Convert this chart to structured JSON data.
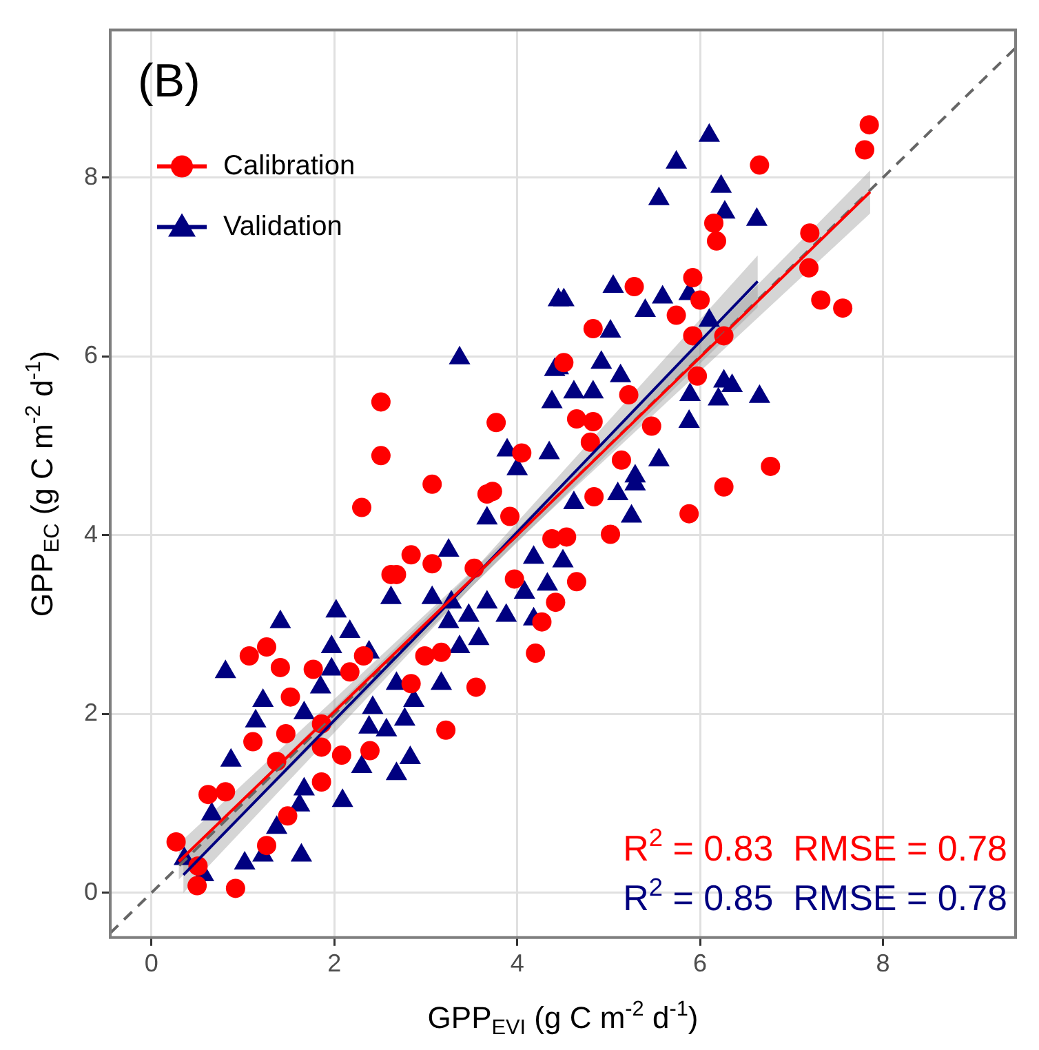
{
  "chart_data": {
    "type": "scatter",
    "xlabel": "GPP$_{EVI}$ (g C m$^{-2}$ d$^{-1}$)",
    "ylabel": "GPP$_{EC}$ (g C m$^{-2}$ d$^{-1}$)",
    "annotations": [
      "(B)",
      "R$^{2}$ = 0.83  RMSE = 0.78",
      "R$^{2}$ = 0.85  RMSE = 0.78"
    ],
    "xlim": [
      -0.45,
      9.45
    ],
    "ylim": [
      -0.5,
      9.65
    ],
    "xticks": [
      0,
      2,
      4,
      6,
      8
    ],
    "yticks": [
      0,
      2,
      4,
      6,
      8
    ],
    "grid": true,
    "legend": "top left",
    "series": [
      {
        "name": "Calibration",
        "marker": "circle",
        "color": "#ff0000",
        "x": [
          7.85,
          7.8,
          6.65,
          6.15,
          6.18,
          7.2,
          7.19,
          7.32,
          7.56,
          6.77,
          6.26,
          5.88,
          5.28,
          5.92,
          6.0,
          5.74,
          4.83,
          5.97,
          5.22,
          4.65,
          4.83,
          5.47,
          5.14,
          4.8,
          4.51,
          5.92,
          6.26,
          4.84,
          5.02,
          4.54,
          4.65,
          4.42,
          2.3,
          3.07,
          3.73,
          2.84,
          2.68,
          3.07,
          1.07,
          1.26,
          1.41,
          1.52,
          1.77,
          2.17,
          1.11,
          1.47,
          1.37,
          1.86,
          2.08,
          1.86,
          0.62,
          0.81,
          1.49,
          1.26,
          0.27,
          0.92,
          3.22,
          3.55,
          3.17,
          3.97,
          4.27,
          4.2,
          4.38,
          3.92,
          2.51,
          2.51,
          3.53,
          2.62,
          3.77,
          4.05,
          3.67,
          1.86,
          2.39,
          0.51,
          0.5,
          2.84,
          2.99,
          2.32
        ],
        "values": [
          8.59,
          8.31,
          8.14,
          7.49,
          7.29,
          7.38,
          6.99,
          6.63,
          6.54,
          4.77,
          4.54,
          4.24,
          6.78,
          6.88,
          6.63,
          6.46,
          6.31,
          5.78,
          5.57,
          5.3,
          5.27,
          5.22,
          4.84,
          5.04,
          5.93,
          6.23,
          6.23,
          4.43,
          4.01,
          3.98,
          3.48,
          3.25,
          4.31,
          4.57,
          4.49,
          3.78,
          3.56,
          3.68,
          2.65,
          2.75,
          2.52,
          2.19,
          2.5,
          2.47,
          1.69,
          1.78,
          1.47,
          1.63,
          1.54,
          1.24,
          1.1,
          1.13,
          0.86,
          0.53,
          0.57,
          0.05,
          1.82,
          2.3,
          2.69,
          3.51,
          3.03,
          2.68,
          3.96,
          4.21,
          5.49,
          4.89,
          3.63,
          3.56,
          5.26,
          4.92,
          4.46,
          1.89,
          1.59,
          0.3,
          0.08,
          2.34,
          2.65,
          2.65
        ]
      },
      {
        "name": "Validation",
        "marker": "triangle",
        "color": "#000080",
        "x": [
          6.1,
          5.74,
          5.55,
          6.23,
          6.27,
          6.62,
          5.05,
          4.51,
          5.59,
          5.4,
          5.88,
          6.1,
          5.02,
          4.92,
          5.13,
          4.62,
          4.83,
          4.45,
          6.26,
          6.35,
          6.65,
          6.2,
          5.89,
          5.88,
          5.55,
          5.29,
          3.37,
          4.45,
          4.41,
          4.38,
          3.89,
          4.35,
          4.0,
          5.1,
          5.29,
          5.25,
          4.62,
          4.5,
          3.67,
          3.25,
          2.62,
          2.02,
          1.41,
          0.81,
          1.22,
          1.14,
          1.67,
          1.85,
          1.97,
          2.17,
          2.38,
          2.42,
          2.68,
          2.87,
          2.57,
          2.83,
          2.68,
          2.3,
          2.09,
          1.67,
          1.62,
          0.87,
          0.66,
          1.37,
          1.22,
          1.64,
          1.02,
          0.36,
          0.57,
          3.07,
          3.28,
          3.47,
          3.67,
          3.88,
          3.58,
          3.37,
          3.17,
          2.77,
          2.38,
          4.08,
          4.33,
          4.18,
          4.18,
          3.25,
          1.97
        ],
        "values": [
          8.47,
          8.17,
          7.76,
          7.9,
          7.61,
          7.53,
          6.78,
          6.63,
          6.66,
          6.51,
          6.7,
          6.4,
          6.28,
          5.93,
          5.78,
          5.6,
          5.6,
          5.87,
          5.72,
          5.67,
          5.55,
          5.52,
          5.57,
          5.27,
          4.84,
          4.66,
          5.98,
          6.63,
          5.85,
          5.49,
          4.95,
          4.92,
          4.74,
          4.46,
          4.57,
          4.21,
          4.36,
          3.71,
          4.19,
          3.83,
          3.3,
          3.15,
          3.03,
          2.47,
          2.15,
          1.92,
          2.01,
          2.3,
          2.75,
          2.92,
          2.69,
          2.07,
          2.34,
          2.15,
          1.82,
          1.51,
          1.33,
          1.41,
          1.03,
          1.16,
          0.98,
          1.48,
          0.88,
          0.73,
          0.42,
          0.42,
          0.33,
          0.38,
          0.2,
          3.3,
          3.25,
          3.1,
          3.25,
          3.1,
          2.84,
          2.75,
          2.34,
          1.94,
          1.85,
          3.36,
          3.45,
          3.75,
          3.06,
          3.03,
          2.5
        ]
      },
      {
        "type": "line",
        "color": "#ff0000",
        "x": [
          0.3,
          4,
          7.86
        ],
        "values": [
          0.35,
          4.0,
          7.84
        ],
        "lower": [
          0.15,
          3.93,
          7.6
        ],
        "upper": [
          0.55,
          4.07,
          8.08
        ]
      },
      {
        "type": "line",
        "color": "#000080",
        "x": [
          0.35,
          3.5,
          6.63
        ],
        "values": [
          0.2,
          3.5,
          6.84
        ],
        "lower": [
          0.0,
          3.42,
          6.55
        ],
        "upper": [
          0.4,
          3.58,
          7.13
        ]
      },
      {
        "type": "line",
        "color": "#666666",
        "line_style": "dashed",
        "x": [
          -0.45,
          9.45
        ],
        "values": [
          -0.45,
          9.45
        ]
      }
    ]
  }
}
